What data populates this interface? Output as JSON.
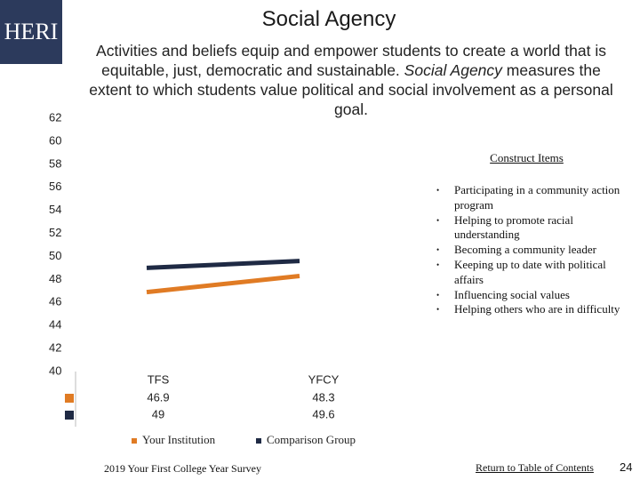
{
  "logo": "HERI",
  "header": {
    "title": "Social Agency",
    "description_before": "Activities and beliefs equip and empower students to create a world that is equitable, just, democratic and sustainable.",
    "description_emphasis": "Social Agency",
    "description_after": "measures the extent to which students value political and social involvement as a personal goal."
  },
  "chart_data": {
    "type": "line",
    "categories": [
      "TFS",
      "YFCY"
    ],
    "series": [
      {
        "name": "Your Institution",
        "color": "#e07b24",
        "values": [
          46.9,
          48.3
        ]
      },
      {
        "name": "Comparison Group",
        "color": "#1f2a44",
        "values": [
          49.0,
          49.6
        ]
      }
    ],
    "ylim": [
      40,
      62
    ],
    "yticks": [
      40,
      42,
      44,
      46,
      48,
      50,
      52,
      54,
      56,
      58,
      60,
      62
    ],
    "grid": false
  },
  "construct_items": {
    "heading": "Construct Items",
    "items": [
      "Participating in a community action program",
      "Helping to promote racial understanding",
      "Becoming a community leader",
      "Keeping up to date with political affairs",
      "Influencing social values",
      "Helping others who are in difficulty"
    ]
  },
  "footer": {
    "survey": "2019 Your First College Year Survey",
    "link": "Return to Table of Contents",
    "page": "24"
  }
}
